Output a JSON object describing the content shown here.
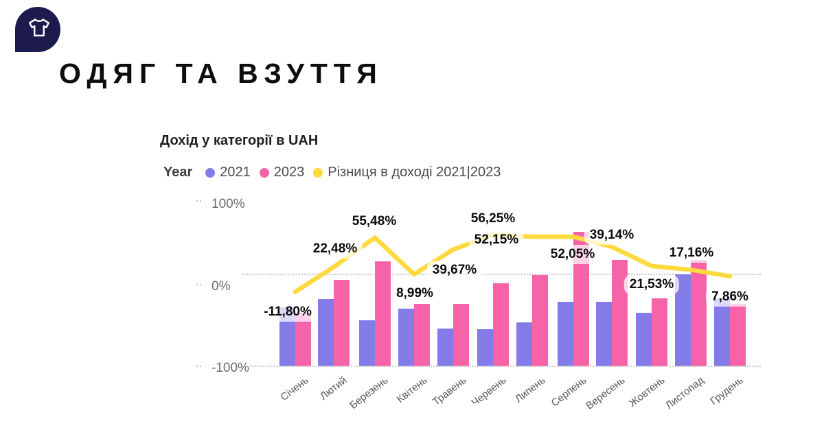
{
  "header": {
    "logo_icon": "tshirt-icon",
    "title": "ОДЯГ ТА ВЗУТТЯ",
    "logo_color": "#1d1a4e"
  },
  "chart": {
    "title": "Дохід у категорії в UAH",
    "legend": {
      "label": "Year",
      "series": [
        {
          "name": "2021",
          "color": "#837be8"
        },
        {
          "name": "2023",
          "color": "#f763a8"
        },
        {
          "name": "Різниця в доході 2021|2023",
          "color": "#ffd93d"
        }
      ]
    }
  },
  "chart_data": {
    "type": "bar+line",
    "title": "Дохід у категорії в UAH",
    "categories": [
      "Січень",
      "Лютий",
      "Березень",
      "Квітень",
      "Травень",
      "Червень",
      "Липень",
      "Серпень",
      "Вересень",
      "Жовтень",
      "Листопад",
      "Грудень"
    ],
    "y_axis": {
      "ticks": [
        "100%",
        "0%",
        "-100%"
      ],
      "range": [
        -100,
        100
      ],
      "gridlines": "dotted at 0% and -100%"
    },
    "legend_position": "top",
    "series": [
      {
        "name": "2021",
        "type": "bar",
        "color": "#837be8",
        "display_pct": [
          -36,
          -27,
          -50,
          -37,
          -59,
          -60,
          -52,
          -30,
          -30,
          -42,
          0,
          -26
        ]
      },
      {
        "name": "2023",
        "type": "bar",
        "color": "#f763a8",
        "display_pct": [
          -42,
          -6,
          14,
          -32,
          -32,
          -10,
          -1,
          46,
          16,
          -26,
          16,
          -32
        ]
      },
      {
        "name": "Різниця в доході 2021|2023",
        "type": "line",
        "color": "#ffd93d",
        "labels": [
          "-11,80%",
          "22,48%",
          "55,48%",
          "8,99%",
          "39,67%",
          "56,25%",
          "52,15%",
          "52,05%",
          "39,14%",
          "21,53%",
          "17,16%",
          "7,86%"
        ],
        "values_pct": [
          -11.8,
          22.48,
          55.48,
          8.99,
          39.67,
          56.25,
          52.15,
          52.05,
          39.14,
          21.53,
          17.16,
          7.86
        ],
        "display_pct": [
          -19,
          8,
          40,
          0,
          27,
          43,
          41,
          41,
          30,
          9,
          5,
          -2
        ]
      }
    ]
  }
}
